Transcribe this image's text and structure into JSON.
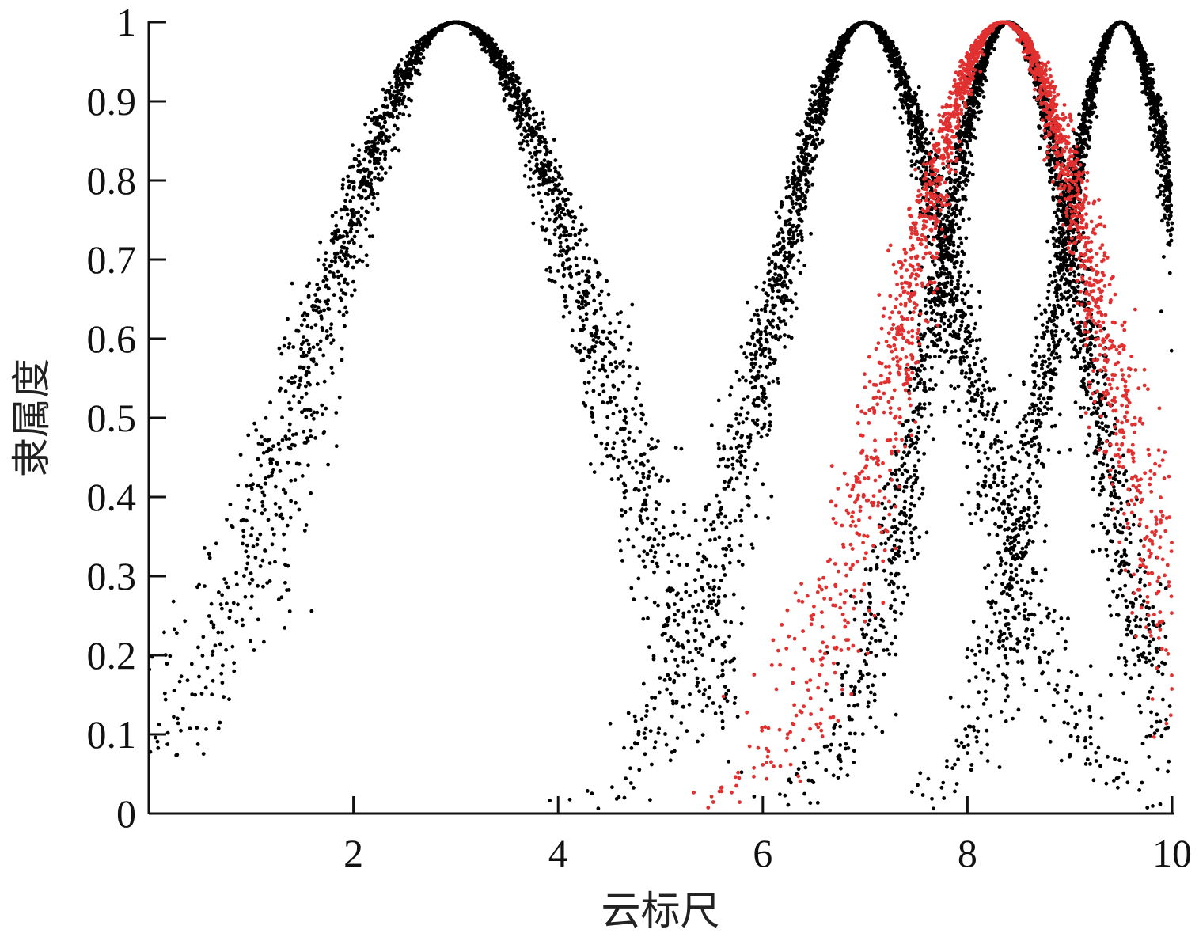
{
  "chart_data": {
    "type": "scatter",
    "xlabel": "云标尺",
    "ylabel": "隶属度",
    "xlim": [
      0,
      10
    ],
    "ylim": [
      0,
      1
    ],
    "x_ticks": [
      2,
      4,
      6,
      8,
      10
    ],
    "x_tick_labels": [
      "2",
      "4",
      "6",
      "8",
      "10"
    ],
    "y_ticks": [
      0,
      0.1,
      0.2,
      0.3,
      0.4,
      0.5,
      0.6,
      0.7,
      0.8,
      0.9,
      1
    ],
    "y_tick_labels": [
      "0",
      "0.1",
      "0.2",
      "0.3",
      "0.4",
      "0.5",
      "0.6",
      "0.7",
      "0.8",
      "0.9",
      "1"
    ],
    "grid": false,
    "legend": "none",
    "colors": {
      "black": "#000000",
      "red": "#e03030"
    },
    "series": [
      {
        "color": "black",
        "center": 3.0,
        "spread_left": 1.35,
        "spread_right": 1.35,
        "x_range": [
          0,
          5.8
        ]
      },
      {
        "color": "black",
        "center": 7.0,
        "spread_left": 0.95,
        "spread_right": 0.95,
        "x_range": [
          3.5,
          9.9
        ]
      },
      {
        "color": "black",
        "center": 8.4,
        "spread_left": 0.75,
        "spread_right": 0.75,
        "x_range": [
          5.7,
          10
        ]
      },
      {
        "color": "black",
        "center": 9.5,
        "spread_left": 0.68,
        "spread_right": 0.68,
        "x_range": [
          7.4,
          10
        ]
      },
      {
        "color": "red",
        "center": 8.35,
        "spread_left": 1.05,
        "spread_right": 0.95,
        "x_range": [
          5.2,
          10
        ]
      }
    ]
  }
}
